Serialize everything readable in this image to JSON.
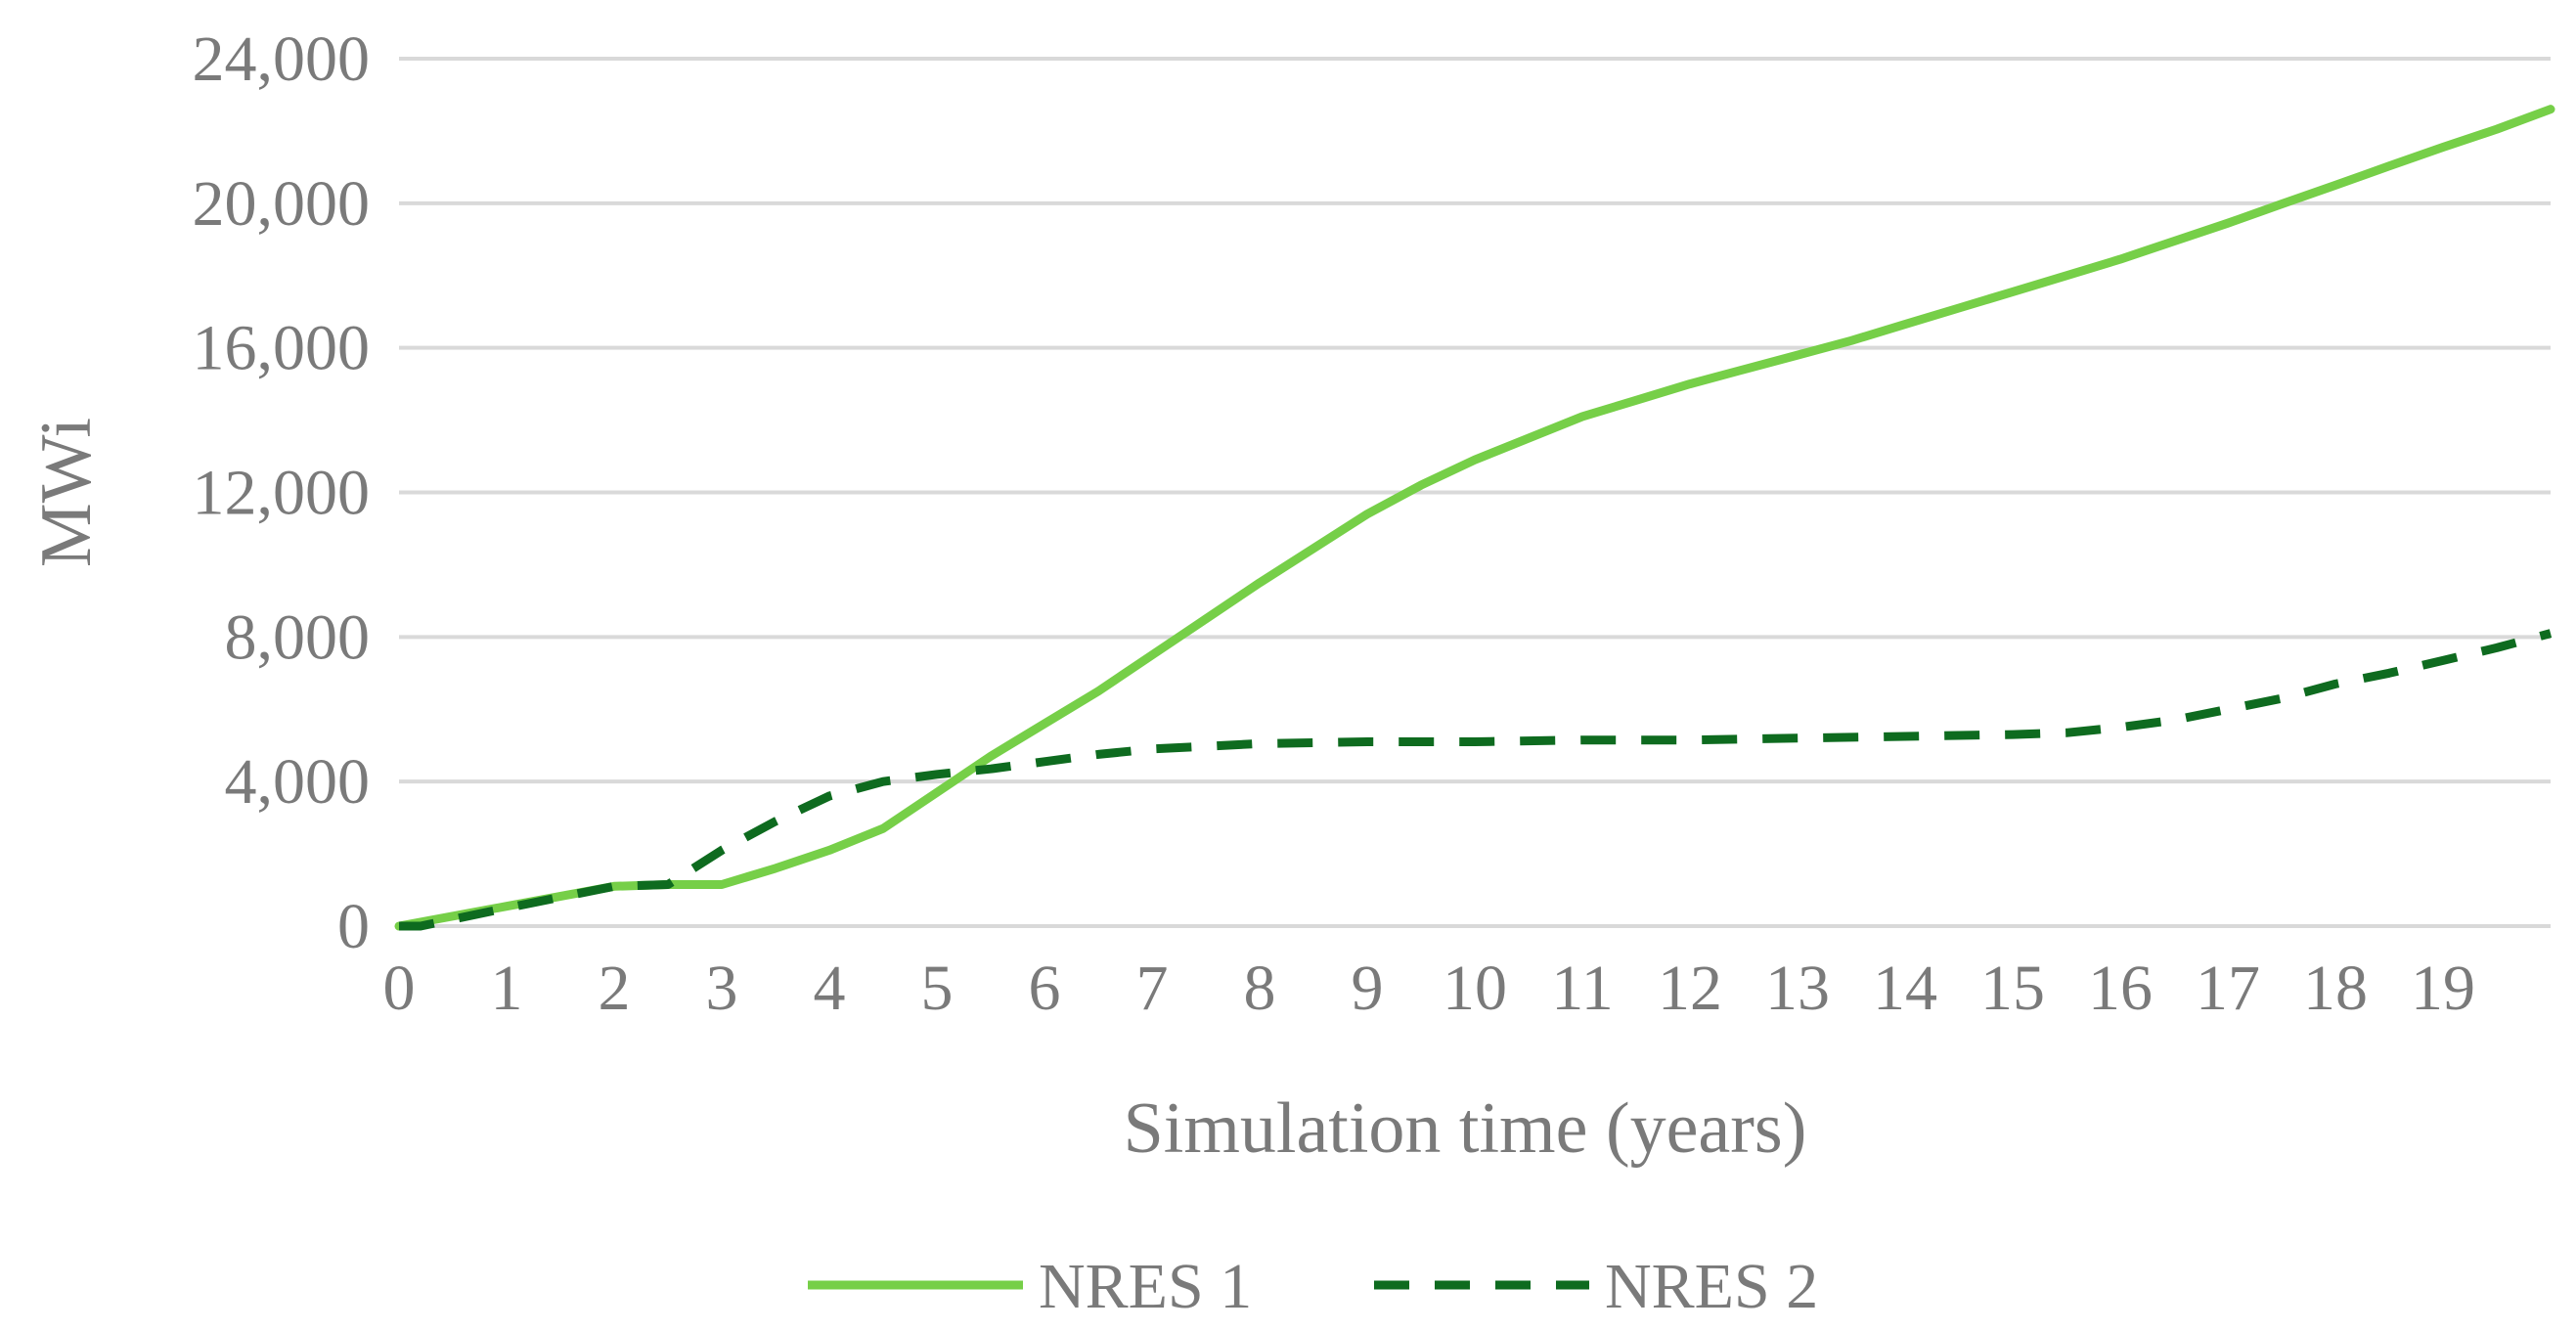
{
  "chart_data": {
    "type": "line",
    "xlabel": "Simulation time (years)",
    "ylabel": "MWi",
    "xlim": [
      0,
      20
    ],
    "ylim": [
      0,
      24000
    ],
    "x_ticks": [
      0,
      1,
      2,
      3,
      4,
      5,
      6,
      7,
      8,
      9,
      10,
      11,
      12,
      13,
      14,
      15,
      16,
      17,
      18,
      19
    ],
    "y_ticks": [
      0,
      4000,
      8000,
      12000,
      16000,
      20000,
      24000
    ],
    "y_tick_labels": [
      "0",
      "4,000",
      "8,000",
      "12,000",
      "16,000",
      "20,000",
      "24,000"
    ],
    "grid": "horizontal",
    "legend_position": "bottom",
    "series": [
      {
        "name": "NRES 1",
        "color": "#76cf48",
        "style": "solid",
        "x": [
          0,
          1,
          2,
          2.5,
          3,
          3.5,
          4,
          4.5,
          5,
          5.5,
          6,
          6.5,
          7,
          7.5,
          8,
          8.5,
          9,
          9.5,
          10,
          10.5,
          11,
          11.5,
          12,
          12.5,
          13,
          13.5,
          14,
          14.5,
          15,
          15.5,
          16,
          16.5,
          17,
          17.5,
          18,
          18.5,
          19,
          19.5,
          20
        ],
        "y": [
          0,
          550,
          1100,
          1150,
          1150,
          1600,
          2100,
          2700,
          3700,
          4700,
          5600,
          6500,
          7500,
          8500,
          9500,
          10450,
          11400,
          12200,
          12900,
          13500,
          14100,
          14550,
          15000,
          15400,
          15800,
          16200,
          16650,
          17100,
          17550,
          18000,
          18450,
          18950,
          19450,
          19980,
          20500,
          21030,
          21550,
          22050,
          22600
        ]
      },
      {
        "name": "NRES 2",
        "color": "#0e6b1f",
        "style": "dashed",
        "x": [
          0,
          0.2,
          1,
          2,
          2.5,
          3,
          3.5,
          4,
          4.5,
          5,
          5.5,
          6,
          6.5,
          7,
          8,
          9,
          10,
          11,
          12,
          13,
          14,
          15,
          15.5,
          16,
          16.5,
          17,
          17.5,
          18,
          18.5,
          19,
          19.5,
          20
        ],
        "y": [
          0,
          0,
          500,
          1100,
          1150,
          2100,
          2900,
          3600,
          4000,
          4200,
          4350,
          4550,
          4750,
          4900,
          5050,
          5100,
          5100,
          5150,
          5150,
          5200,
          5250,
          5300,
          5350,
          5500,
          5700,
          6000,
          6300,
          6700,
          7000,
          7350,
          7700,
          8100
        ]
      }
    ]
  }
}
